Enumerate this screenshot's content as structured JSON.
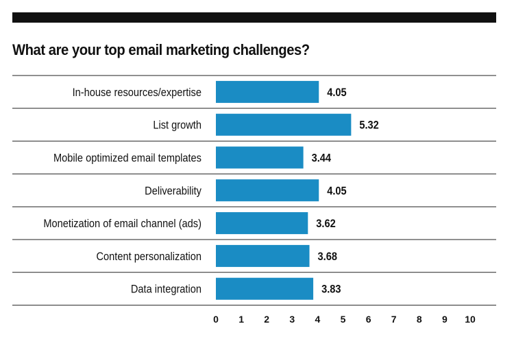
{
  "chart_data": {
    "type": "bar",
    "orientation": "horizontal",
    "title": "What are your top email marketing challenges?",
    "categories": [
      "In-house resources/expertise",
      "List growth",
      "Mobile optimized email templates",
      "Deliverability",
      "Monetization of email channel (ads)",
      "Content personalization",
      "Data integration"
    ],
    "values": [
      4.05,
      5.32,
      3.44,
      4.05,
      3.62,
      3.68,
      3.83
    ],
    "value_labels": [
      "4.05",
      "5.32",
      "3.44",
      "4.05",
      "3.62",
      "3.68",
      "3.83"
    ],
    "xlim": [
      0,
      10
    ],
    "x_ticks": [
      "0",
      "1",
      "2",
      "3",
      "4",
      "5",
      "6",
      "7",
      "8",
      "9",
      "10"
    ],
    "xlabel": "",
    "ylabel": "",
    "grid": false,
    "legend": "none",
    "colors": {
      "bar": "#1a8cc4",
      "rule": "#222222",
      "header_bar": "#111111"
    }
  }
}
